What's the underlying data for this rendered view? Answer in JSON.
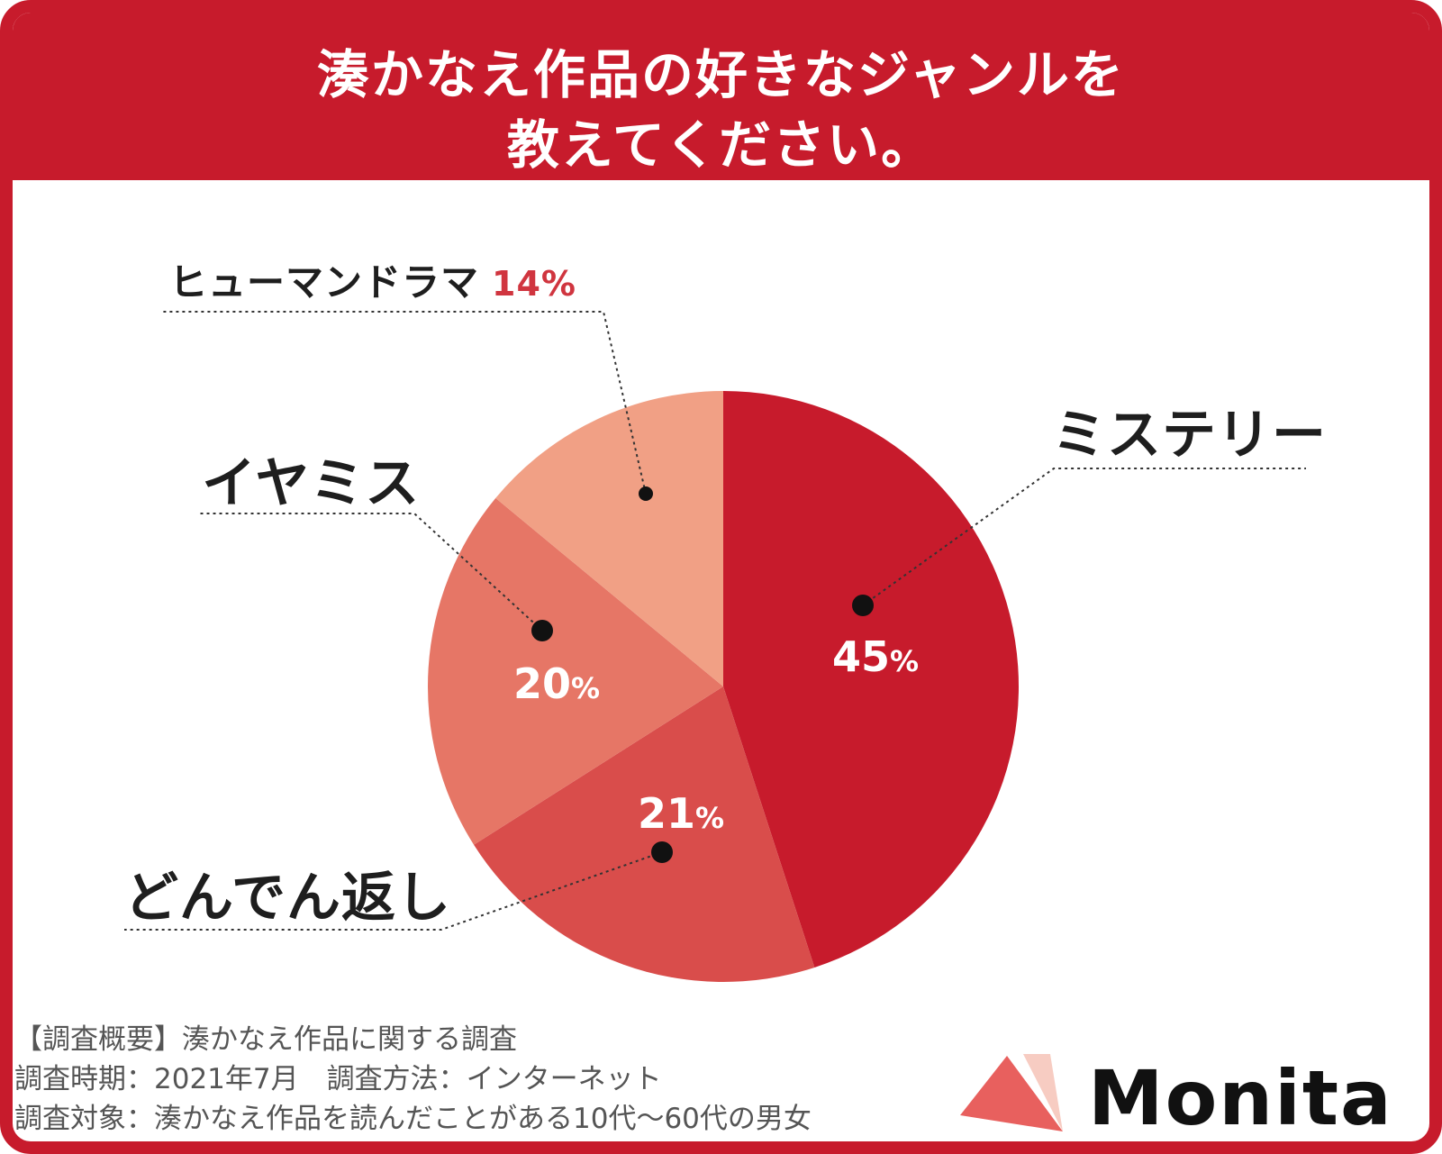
{
  "title_line1": "湊かなえ作品の好きなジャンルを",
  "title_line2": "教えてください。",
  "colors": {
    "frame": "#c71b2c",
    "mystery": "#c71b2c",
    "donden": "#d94d4b",
    "iyamisu": "#e67666",
    "human_drama": "#f1a085",
    "logo_mark": "#e8605e"
  },
  "chart_data": {
    "type": "pie",
    "unit": "%",
    "slices": [
      {
        "label": "ミステリー",
        "value": 45,
        "color": "#c71b2c"
      },
      {
        "label": "どんでん返し",
        "value": 21,
        "color": "#d94d4b"
      },
      {
        "label": "イヤミス",
        "value": 20,
        "color": "#e67666"
      },
      {
        "label": "ヒューマンドラマ",
        "value": 14,
        "color": "#f1a085"
      }
    ]
  },
  "labels": {
    "mystery": "ミステリー",
    "iyamisu": "イヤミス",
    "donden": "どんでん返し",
    "human_drama": "ヒューマンドラマ",
    "human_drama_pct": "14%"
  },
  "slice_pcts": {
    "mystery": "45",
    "iyamisu": "20",
    "donden": "21",
    "unit": "%"
  },
  "footnotes": [
    "【調査概要】湊かなえ作品に関する調査",
    "調査時期：2021年7月　調査方法：インターネット",
    "調査対象：湊かなえ作品を読んだことがある10代〜60代の男女"
  ],
  "brand": {
    "name": "Monita",
    "icon": "triangle-logo-icon"
  }
}
